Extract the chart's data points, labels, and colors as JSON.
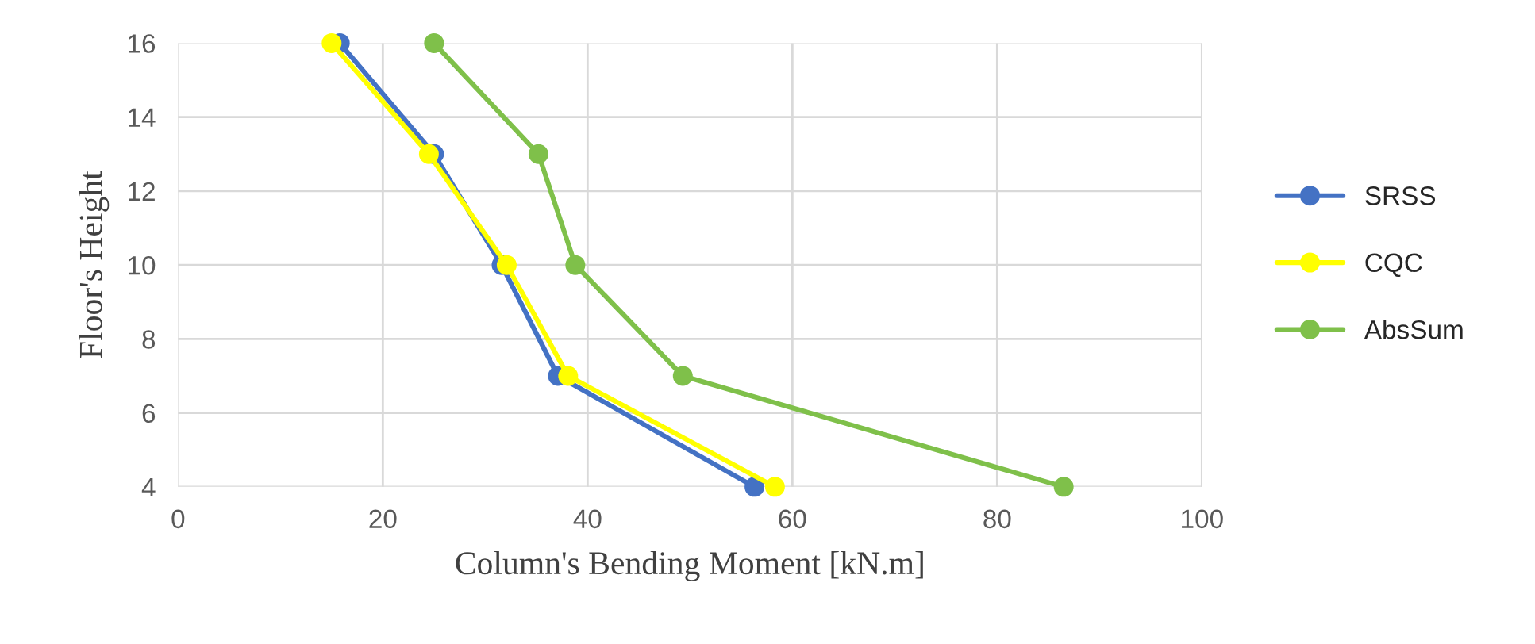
{
  "chart_data": {
    "type": "line",
    "xlabel": "Column's Bending Moment [kN.m]",
    "ylabel": "Floor's Height",
    "series": [
      {
        "name": "SRSS",
        "color": "#4472c4",
        "x": [
          15.8,
          25.0,
          31.6,
          37.1,
          56.3
        ],
        "values": [
          16,
          13,
          10,
          7,
          4
        ]
      },
      {
        "name": "CQC",
        "color": "#ffff00",
        "x": [
          15.0,
          24.5,
          32.1,
          38.1,
          58.3
        ],
        "values": [
          16,
          13,
          10,
          7,
          4
        ]
      },
      {
        "name": "AbsSum",
        "color": "#7fc04a",
        "x": [
          25.0,
          35.2,
          38.8,
          49.3,
          86.5
        ],
        "values": [
          16,
          13,
          10,
          7,
          4
        ]
      }
    ],
    "xlim": [
      0,
      100
    ],
    "xticks": [
      0,
      20,
      40,
      60,
      80,
      100
    ],
    "ylim": [
      4,
      16
    ],
    "yticks": [
      4,
      6,
      8,
      10,
      12,
      14,
      16
    ],
    "grid": true,
    "legend": "right",
    "marker": "circle",
    "line_style": "solid"
  }
}
